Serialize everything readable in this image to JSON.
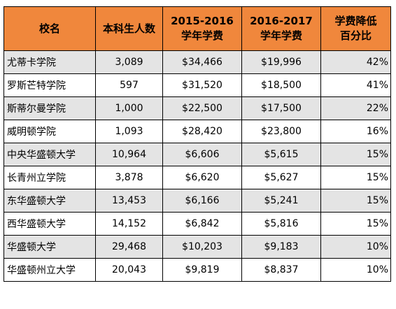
{
  "header": {
    "name": "校名",
    "students": "本科生人数",
    "fee_2015_line1": "2015-2016",
    "fee_2015_line2": "学年学费",
    "fee_2016_line1": "2016-2017",
    "fee_2016_line2": "学年学费",
    "decrease_line1": "学费降低",
    "decrease_line2": "百分比"
  },
  "rows": [
    {
      "name": "尤蒂卡学院",
      "students": "3,089",
      "fee_2015": "$34,466",
      "fee_2016": "$19,996",
      "decrease": "42%"
    },
    {
      "name": "罗斯芒特学院",
      "students": "597",
      "fee_2015": "$31,520",
      "fee_2016": "$18,500",
      "decrease": "41%"
    },
    {
      "name": "斯蒂尔曼学院",
      "students": "1,000",
      "fee_2015": "$22,500",
      "fee_2016": "$17,500",
      "decrease": "22%"
    },
    {
      "name": "威明顿学院",
      "students": "1,093",
      "fee_2015": "$28,420",
      "fee_2016": "$23,800",
      "decrease": "16%"
    },
    {
      "name": "中央华盛顿大学",
      "students": "10,964",
      "fee_2015": "$6,606",
      "fee_2016": "$5,615",
      "decrease": "15%"
    },
    {
      "name": "长青州立学院",
      "students": "3,878",
      "fee_2015": "$6,620",
      "fee_2016": "$5,627",
      "decrease": "15%"
    },
    {
      "name": "东华盛顿大学",
      "students": "13,453",
      "fee_2015": "$6,166",
      "fee_2016": "$5,241",
      "decrease": "15%"
    },
    {
      "name": "西华盛顿大学",
      "students": "14,152",
      "fee_2015": "$6,842",
      "fee_2016": "$5,816",
      "decrease": "15%"
    },
    {
      "name": "华盛顿大学",
      "students": "29,468",
      "fee_2015": "$10,203",
      "fee_2016": "$9,183",
      "decrease": "10%"
    },
    {
      "name": "华盛顿州立大学",
      "students": "20,043",
      "fee_2015": "$9,819",
      "fee_2016": "$8,837",
      "decrease": "10%"
    }
  ],
  "colors": {
    "header_bg": "#f0873c",
    "shaded_row_bg": "#e4e4e4",
    "border": "#000000"
  }
}
